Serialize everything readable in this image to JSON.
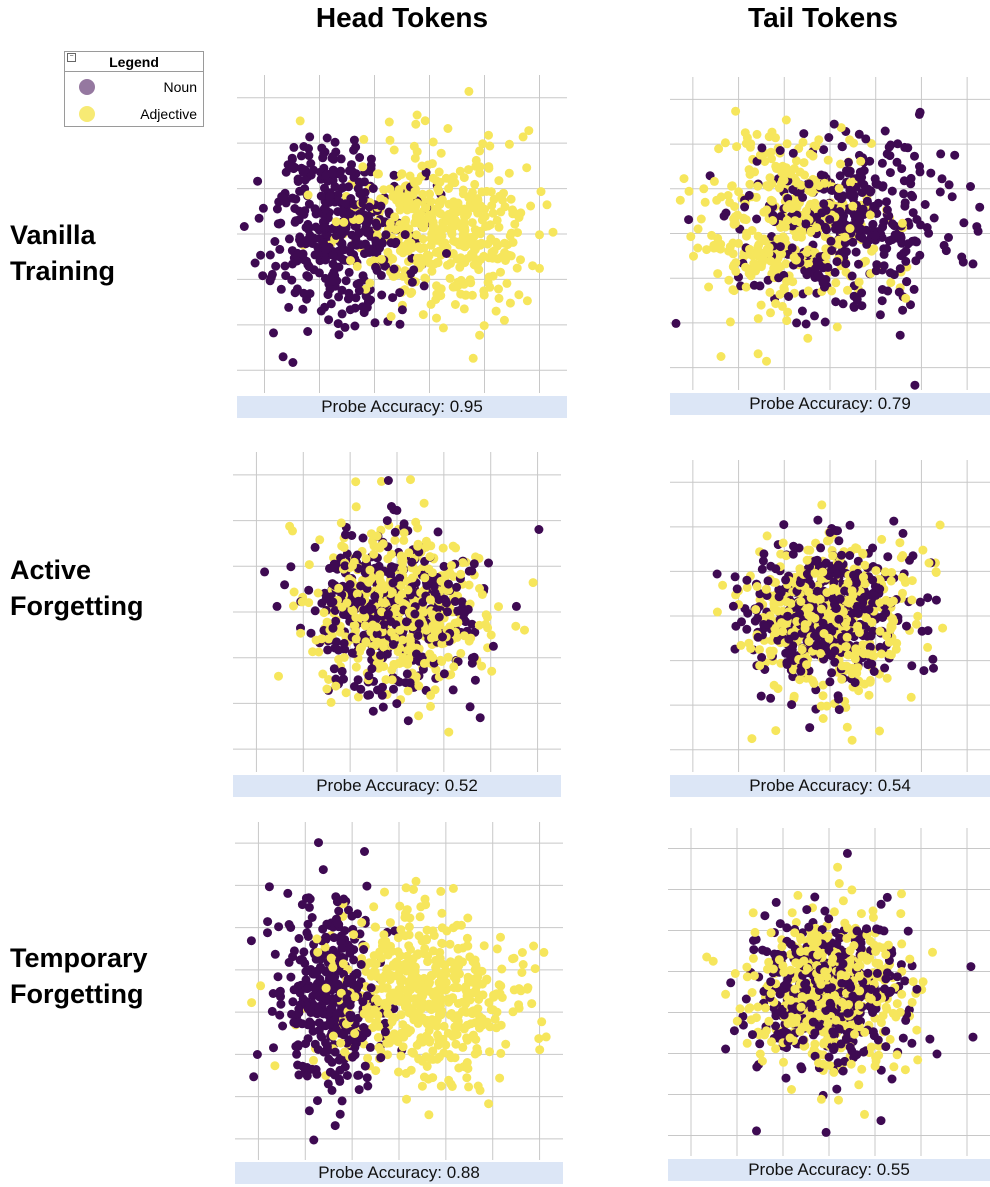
{
  "column_titles": [
    "Head Tokens",
    "Tail Tokens"
  ],
  "row_labels": [
    [
      "Vanilla",
      "Training"
    ],
    [
      "Active",
      "Forgetting"
    ],
    [
      "Temporary",
      "Forgetting"
    ]
  ],
  "legend": {
    "title": "Legend",
    "items": [
      {
        "label": "Noun",
        "color": "#3e0a52"
      },
      {
        "label": "Adjective",
        "color": "#f6e65c"
      }
    ]
  },
  "colors": {
    "noun": "#3e0a52",
    "adjective": "#f6e65c",
    "grid": "#c8c8c8",
    "accuracy_bar": "#dce6f6"
  },
  "chart_data": [
    {
      "type": "scatter",
      "row": "Vanilla Training",
      "column": "Head Tokens",
      "probe_accuracy": "Probe Accuracy: 0.95",
      "x_ticks": 6,
      "y_ticks": 7,
      "grid": true,
      "series": [
        {
          "name": "Noun",
          "n_points": 420,
          "mean_x": -1.6,
          "mean_y": 0.1,
          "std_x": 0.9,
          "std_y": 1.15
        },
        {
          "name": "Adjective",
          "n_points": 480,
          "mean_x": 1.0,
          "mean_y": 0.2,
          "std_x": 1.1,
          "std_y": 1.0
        }
      ]
    },
    {
      "type": "scatter",
      "row": "Vanilla Training",
      "column": "Tail Tokens",
      "probe_accuracy": "Probe Accuracy: 0.79",
      "x_ticks": 7,
      "y_ticks": 7,
      "grid": true,
      "series": [
        {
          "name": "Noun",
          "n_points": 380,
          "mean_x": 0.5,
          "mean_y": 0.2,
          "std_x": 1.3,
          "std_y": 1.15
        },
        {
          "name": "Adjective",
          "n_points": 380,
          "mean_x": -1.0,
          "mean_y": 0.3,
          "std_x": 1.1,
          "std_y": 1.1
        }
      ]
    },
    {
      "type": "scatter",
      "row": "Active Forgetting",
      "column": "Head Tokens",
      "probe_accuracy": "Probe Accuracy: 0.52",
      "x_ticks": 7,
      "y_ticks": 7,
      "grid": true,
      "series": [
        {
          "name": "Noun",
          "n_points": 400,
          "mean_x": 0.0,
          "mean_y": 0.0,
          "std_x": 1.0,
          "std_y": 1.0
        },
        {
          "name": "Adjective",
          "n_points": 480,
          "mean_x": 0.0,
          "mean_y": 0.0,
          "std_x": 1.0,
          "std_y": 1.0
        }
      ]
    },
    {
      "type": "scatter",
      "row": "Active Forgetting",
      "column": "Tail Tokens",
      "probe_accuracy": "Probe Accuracy: 0.54",
      "x_ticks": 7,
      "y_ticks": 7,
      "grid": true,
      "series": [
        {
          "name": "Noun",
          "n_points": 430,
          "mean_x": 0.0,
          "mean_y": 0.0,
          "std_x": 1.0,
          "std_y": 1.0
        },
        {
          "name": "Adjective",
          "n_points": 450,
          "mean_x": 0.0,
          "mean_y": 0.0,
          "std_x": 1.0,
          "std_y": 1.0
        }
      ]
    },
    {
      "type": "scatter",
      "row": "Temporary Forgetting",
      "column": "Head Tokens",
      "probe_accuracy": "Probe Accuracy: 0.88",
      "x_ticks": 7,
      "y_ticks": 8,
      "grid": true,
      "series": [
        {
          "name": "Noun",
          "n_points": 360,
          "mean_x": -1.7,
          "mean_y": -0.1,
          "std_x": 0.65,
          "std_y": 1.1
        },
        {
          "name": "Adjective",
          "n_points": 520,
          "mean_x": 0.6,
          "mean_y": -0.1,
          "std_x": 1.2,
          "std_y": 1.0
        }
      ]
    },
    {
      "type": "scatter",
      "row": "Temporary Forgetting",
      "column": "Tail Tokens",
      "probe_accuracy": "Probe Accuracy: 0.55",
      "x_ticks": 7,
      "y_ticks": 8,
      "grid": true,
      "series": [
        {
          "name": "Noun",
          "n_points": 420,
          "mean_x": 0.0,
          "mean_y": 0.0,
          "std_x": 1.0,
          "std_y": 0.95
        },
        {
          "name": "Adjective",
          "n_points": 480,
          "mean_x": 0.0,
          "mean_y": 0.0,
          "std_x": 0.95,
          "std_y": 0.9
        }
      ]
    }
  ]
}
